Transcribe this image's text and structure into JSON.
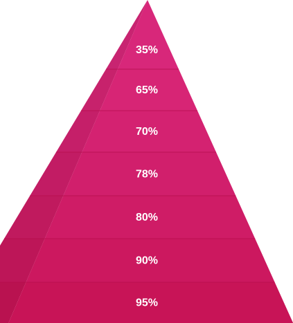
{
  "chart_data": {
    "type": "pyramid",
    "values": [
      35,
      65,
      70,
      78,
      80,
      90,
      95
    ],
    "value_labels": [
      "35%",
      "65%",
      "70%",
      "78%",
      "80%",
      "90%",
      "95%"
    ],
    "colors": [
      "#d8277a",
      "#d72575",
      "#d42271",
      "#d11f6c",
      "#cf1c66",
      "#cc185f",
      "#c81457"
    ]
  }
}
